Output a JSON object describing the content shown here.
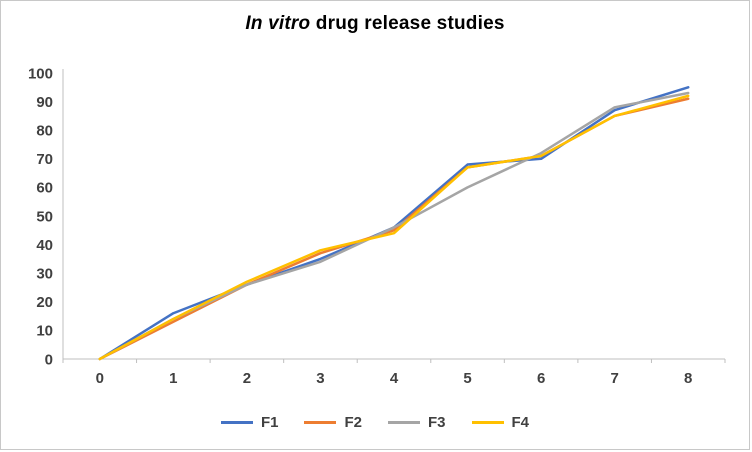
{
  "chart": {
    "title_italic": "In vitro",
    "title_rest": " drug release studies"
  },
  "chart_data": {
    "type": "line",
    "title": "In vitro drug release studies",
    "x": [
      0,
      1,
      2,
      3,
      4,
      5,
      6,
      7,
      8
    ],
    "series": [
      {
        "name": "F1",
        "color": "#4472C4",
        "values": [
          0,
          16,
          26,
          35,
          46,
          68,
          70,
          87,
          95
        ]
      },
      {
        "name": "F2",
        "color": "#ED7D31",
        "values": [
          0,
          13,
          26,
          37,
          45,
          67,
          71,
          85,
          91
        ]
      },
      {
        "name": "F3",
        "color": "#A5A5A5",
        "values": [
          0,
          14,
          26,
          34,
          46,
          60,
          72,
          88,
          93
        ]
      },
      {
        "name": "F4",
        "color": "#FFC000",
        "values": [
          0,
          14,
          27,
          38,
          44,
          67,
          71,
          85,
          92
        ]
      }
    ],
    "xlabel": "",
    "ylabel": "",
    "ylim": [
      0,
      100
    ],
    "ytick_step": 10,
    "grid": false,
    "legend_position": "bottom",
    "axis_color": "#BFBFBF",
    "tick_label_color": "#404040"
  }
}
